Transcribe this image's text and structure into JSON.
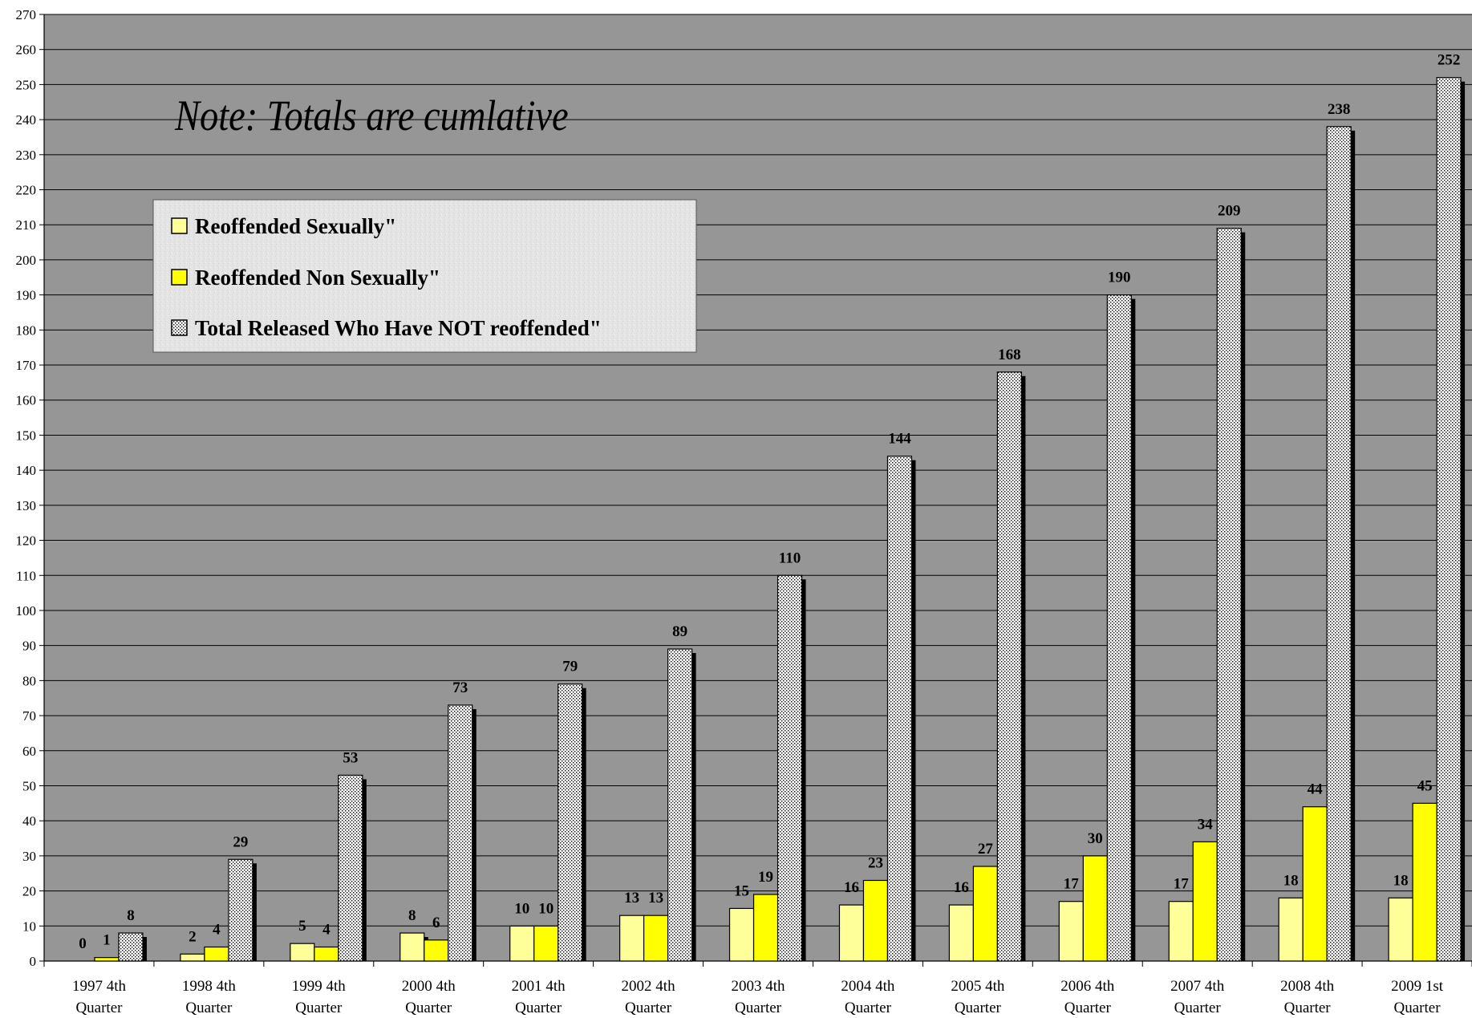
{
  "chart_data": {
    "type": "bar",
    "title": "",
    "xlabel": "",
    "ylabel": "",
    "note": "Note: Totals are cumlative",
    "ylim": [
      0,
      270
    ],
    "ytick_step": 10,
    "grid": true,
    "legend_position": "top-left",
    "categories": [
      [
        "1997 4th",
        "Quarter"
      ],
      [
        "1998 4th",
        "Quarter"
      ],
      [
        "1999 4th",
        "Quarter"
      ],
      [
        "2000 4th",
        "Quarter"
      ],
      [
        "2001 4th",
        "Quarter"
      ],
      [
        "2002 4th",
        "Quarter"
      ],
      [
        "2003 4th",
        "Quarter"
      ],
      [
        "2004 4th",
        "Quarter"
      ],
      [
        "2005 4th",
        "Quarter"
      ],
      [
        "2006 4th",
        "Quarter"
      ],
      [
        "2007 4th",
        "Quarter"
      ],
      [
        "2008 4th",
        "Quarter"
      ],
      [
        "2009 1st",
        "Quarter"
      ]
    ],
    "series": [
      {
        "name": "Reoffended Sexually\"",
        "color": "#ffff99",
        "pattern": "solid",
        "values": [
          0,
          2,
          5,
          8,
          10,
          13,
          15,
          16,
          16,
          17,
          17,
          18,
          18
        ]
      },
      {
        "name": "Reoffended Non Sexually\"",
        "color": "#ffff00",
        "pattern": "solid",
        "values": [
          1,
          4,
          4,
          6,
          10,
          13,
          19,
          23,
          27,
          30,
          34,
          44,
          45
        ]
      },
      {
        "name": "Total Released Who Have NOT reoffended\"",
        "color": "#ffffff",
        "pattern": "dotted",
        "values": [
          8,
          29,
          53,
          73,
          79,
          89,
          110,
          144,
          168,
          190,
          209,
          238,
          252
        ]
      }
    ],
    "colors": {
      "plot_background": "#969696",
      "gridline": "#000000",
      "bar_shadow": "#000000",
      "legend_background": "#e6e6e6"
    }
  }
}
